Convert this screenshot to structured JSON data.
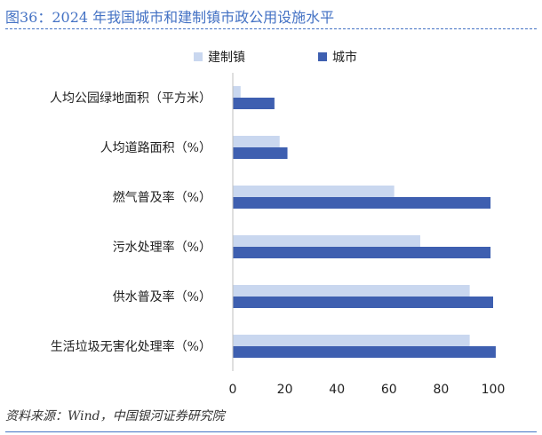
{
  "page": {
    "title": "图36：2024 年我国城市和建制镇市政公用设施水平",
    "source": "资料来源：Wind，中国银河证券研究院"
  },
  "chart_data": {
    "type": "bar",
    "orientation": "horizontal",
    "categories": [
      "人均公园绿地面积（平方米）",
      "人均道路面积（%）",
      "燃气普及率（%）",
      "污水处理率（%）",
      "供水普及率（%）",
      "生活垃圾无害化处理率（%）"
    ],
    "series": [
      {
        "name": "建制镇",
        "color": "#c9d7ef",
        "values": [
          3,
          18,
          62,
          72,
          91,
          91
        ]
      },
      {
        "name": "城市",
        "color": "#3e5fb0",
        "values": [
          16,
          21,
          99,
          99,
          100,
          101
        ]
      }
    ],
    "xlim": [
      0,
      100
    ],
    "xticks": [
      0,
      20,
      40,
      60,
      80,
      100
    ],
    "legend_position": "top",
    "grid": false
  }
}
